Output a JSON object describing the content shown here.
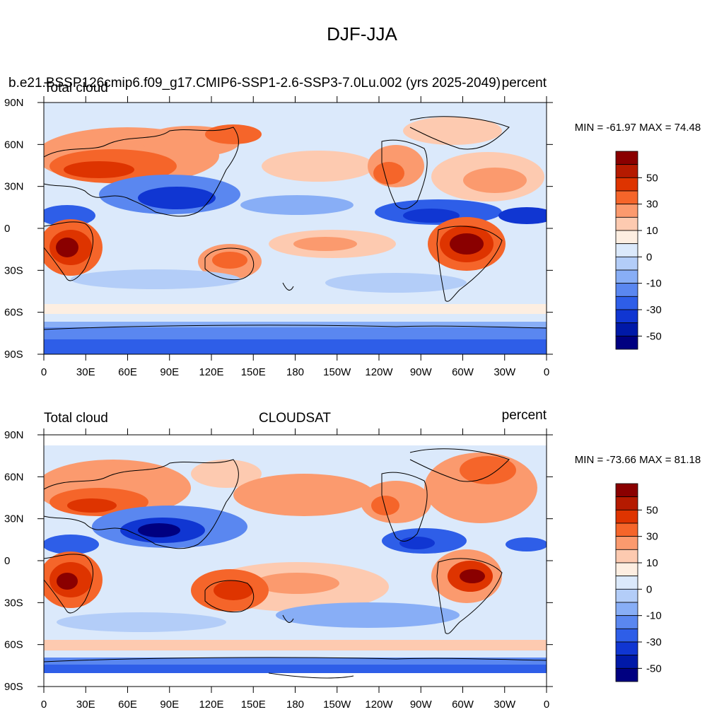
{
  "figure": {
    "title": "DJF-JJA"
  },
  "panels": [
    {
      "id": "model",
      "left_title": "Total cloud",
      "center_title": "",
      "right_title": "percent",
      "case_title": "b.e21.BSSP126cmip6.f09_g17.CMIP6-SSP1-2.6-SSP3-7.0Lu.002 (yrs 2025-2049)",
      "min_max_text": "MIN = -61.97 MAX =  74.48",
      "min": -61.97,
      "max": 74.48
    },
    {
      "id": "obs",
      "left_title": "Total cloud",
      "center_title": "CLOUDSAT",
      "right_title": "percent",
      "case_title": "",
      "min_max_text": "MIN = -73.66 MAX =  81.18",
      "min": -73.66,
      "max": 81.18
    }
  ],
  "axes": {
    "lon_ticks": [
      "0",
      "30E",
      "60E",
      "90E",
      "120E",
      "150E",
      "180",
      "150W",
      "120W",
      "90W",
      "60W",
      "30W",
      "0"
    ],
    "lat_ticks": [
      "90N",
      "60N",
      "30N",
      "0",
      "30S",
      "60S",
      "90S"
    ],
    "lon_range": [
      0,
      360
    ],
    "lat_range": [
      90,
      -90
    ]
  },
  "colorbar": {
    "labels": [
      "50",
      "30",
      "10",
      "0",
      "-10",
      "-30",
      "-50"
    ],
    "colors": [
      "#8a0000",
      "#b51a00",
      "#de3400",
      "#f5652a",
      "#fb9a6e",
      "#fdcab0",
      "#fdeee1",
      "#dbe9fb",
      "#b3cdf8",
      "#88aef6",
      "#5a87f0",
      "#2e5ee8",
      "#1036d2",
      "#0019a8",
      "#000080"
    ]
  }
}
